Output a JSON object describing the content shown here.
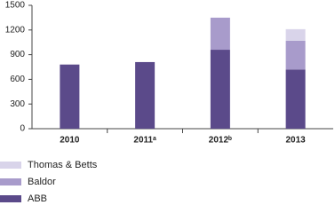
{
  "chart_data": {
    "type": "stacked-bar",
    "categories": [
      "2010",
      "2011ᵃ",
      "2012ᵇ",
      "2013"
    ],
    "series": [
      {
        "name": "ABB",
        "color": "#5b4a8a",
        "values": [
          780,
          810,
          960,
          720
        ]
      },
      {
        "name": "Baldor",
        "color": "#a89bcb",
        "values": [
          null,
          null,
          390,
          350
        ]
      },
      {
        "name": "Thomas & Betts",
        "color": "#d9d4ea",
        "values": [
          null,
          null,
          null,
          140
        ]
      }
    ],
    "ylim": [
      0,
      1500
    ],
    "yticks": [
      0,
      300,
      600,
      900,
      1200,
      1500
    ],
    "grid": false
  }
}
